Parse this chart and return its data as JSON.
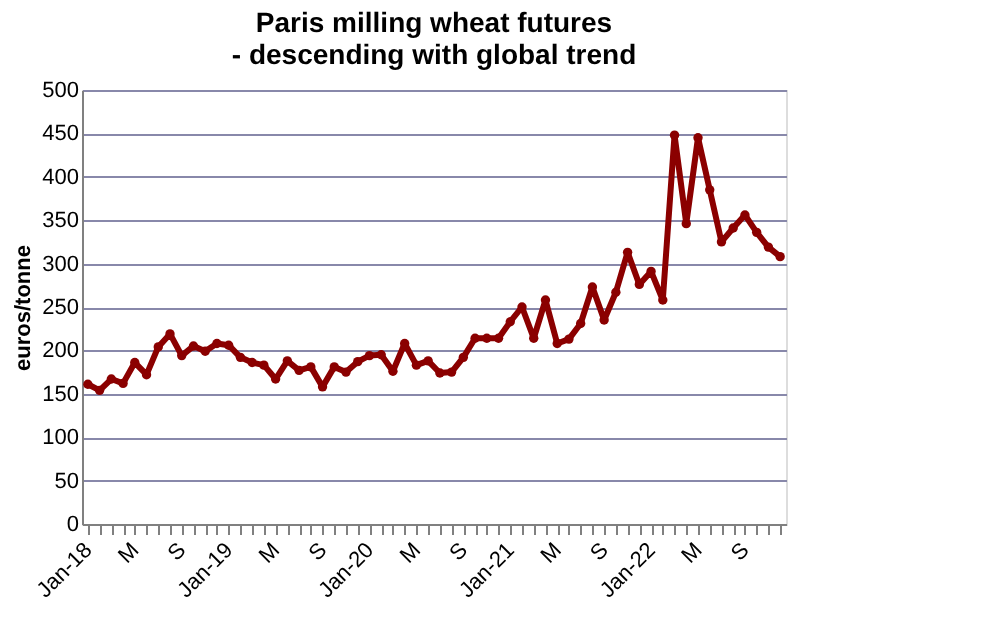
{
  "chart_data": {
    "type": "line",
    "title": "Paris milling wheat futures\n- descending with global trend",
    "ylabel": "euros/tonne",
    "categories": [
      "Jan-18",
      null,
      null,
      null,
      "M",
      null,
      null,
      null,
      "S",
      null,
      null,
      null,
      "Jan-19",
      null,
      null,
      null,
      "M",
      null,
      null,
      null,
      "S",
      null,
      null,
      null,
      "Jan-20",
      null,
      null,
      null,
      "M",
      null,
      null,
      null,
      "S",
      null,
      null,
      null,
      "Jan-21",
      null,
      null,
      null,
      "M",
      null,
      null,
      null,
      "S",
      null,
      null,
      null,
      "Jan-22",
      null,
      null,
      null,
      "M",
      null,
      null,
      null,
      "S",
      null,
      null,
      null
    ],
    "series": [
      {
        "color": "#8b0000",
        "values": [
          161,
          154,
          167,
          162,
          186,
          172,
          204,
          219,
          194,
          205,
          199,
          208,
          206,
          192,
          186,
          183,
          167,
          188,
          177,
          181,
          158,
          181,
          175,
          187,
          194,
          195,
          176,
          208,
          183,
          188,
          174,
          175,
          192,
          214,
          214,
          214,
          233,
          250,
          214,
          258,
          208,
          213,
          231,
          273,
          235,
          267,
          313,
          276,
          291,
          258,
          448,
          346,
          445,
          385,
          325,
          341,
          356,
          336,
          319,
          308
        ]
      }
    ],
    "ylim": [
      0,
      500
    ],
    "yticks": [
      0,
      50,
      100,
      150,
      200,
      250,
      300,
      350,
      400,
      450,
      500
    ],
    "grid": "y",
    "marker": "circle",
    "line_style": "solid"
  }
}
